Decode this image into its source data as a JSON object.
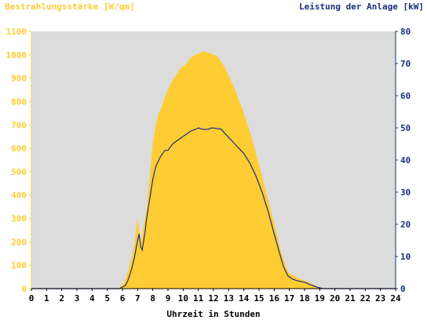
{
  "chart_data": {
    "type": "area",
    "title_left": "Bestrahlungsstärke [W/qm]",
    "title_right": "Leistung der Anlage [kW]",
    "xlabel": "Uhrzeit in Stunden",
    "xlim": [
      0,
      24
    ],
    "x_ticks": [
      "0",
      "1",
      "2",
      "3",
      "4",
      "5",
      "6",
      "7",
      "8",
      "9",
      "10",
      "11",
      "12",
      "13",
      "14",
      "15",
      "16",
      "17",
      "18",
      "19",
      "20",
      "21",
      "22",
      "23",
      "24"
    ],
    "ylim_left": [
      0,
      1100
    ],
    "y_ticks_left": [
      "0",
      "100",
      "200",
      "300",
      "400",
      "500",
      "600",
      "700",
      "800",
      "900",
      "1000",
      "1100"
    ],
    "ylim_right": [
      0,
      80
    ],
    "y_ticks_right": [
      "0",
      "10",
      "20",
      "30",
      "40",
      "50",
      "60",
      "70",
      "80"
    ],
    "grid": false,
    "colors": {
      "plot_bg": "#dcdcdc",
      "irradiance_fill": "#ffcc33",
      "power_line": "#1a2f7a",
      "left_axis": "#ffcc33",
      "right_axis": "#1a2f7a"
    },
    "series": [
      {
        "axis": "left",
        "style": "area",
        "x": [
          0,
          5.6,
          5.8,
          6.0,
          6.2,
          6.4,
          6.6,
          6.8,
          6.9,
          7.0,
          7.1,
          7.2,
          7.3,
          7.4,
          7.5,
          7.6,
          7.8,
          8.0,
          8.2,
          8.4,
          8.6,
          8.8,
          9.0,
          9.2,
          9.4,
          9.6,
          9.8,
          10.0,
          10.2,
          10.4,
          10.6,
          10.8,
          11.0,
          11.2,
          11.4,
          11.6,
          11.8,
          12.0,
          12.2,
          12.4,
          12.6,
          12.8,
          13.0,
          13.3,
          13.6,
          14.0,
          14.4,
          14.8,
          15.2,
          15.6,
          16.0,
          16.4,
          16.8,
          17.0,
          17.3,
          17.6,
          18.0,
          18.3,
          18.6,
          18.8,
          19.0,
          19.2,
          24
        ],
        "y": [
          0,
          0,
          5,
          15,
          40,
          80,
          130,
          190,
          260,
          300,
          250,
          200,
          230,
          270,
          300,
          340,
          480,
          620,
          700,
          750,
          780,
          820,
          850,
          880,
          900,
          920,
          940,
          950,
          960,
          980,
          990,
          1000,
          1005,
          1010,
          1015,
          1010,
          1005,
          1000,
          995,
          980,
          960,
          940,
          910,
          870,
          820,
          750,
          670,
          580,
          480,
          380,
          280,
          170,
          90,
          65,
          55,
          45,
          35,
          28,
          18,
          8,
          3,
          0,
          0
        ]
      },
      {
        "axis": "right",
        "style": "line",
        "x": [
          0,
          5.8,
          6.0,
          6.2,
          6.4,
          6.6,
          6.8,
          7.0,
          7.1,
          7.2,
          7.3,
          7.4,
          7.5,
          7.6,
          7.8,
          8.0,
          8.2,
          8.5,
          8.8,
          9.0,
          9.3,
          9.6,
          9.9,
          10.2,
          10.5,
          10.8,
          11.0,
          11.3,
          11.6,
          11.9,
          12.2,
          12.5,
          12.8,
          13.1,
          13.4,
          13.7,
          14.0,
          14.4,
          14.8,
          15.2,
          15.6,
          16.0,
          16.3,
          16.6,
          16.9,
          17.2,
          17.5,
          18.0,
          18.4,
          18.8,
          19.2,
          24
        ],
        "y": [
          0,
          0,
          0.5,
          1,
          3,
          6,
          10,
          15,
          17,
          13,
          12,
          15,
          18,
          22,
          28,
          34,
          38,
          41,
          43,
          43,
          45,
          46,
          47,
          48,
          49,
          49.5,
          50,
          49.5,
          49.5,
          50,
          49.8,
          49.6,
          48,
          46.5,
          45,
          43.5,
          42,
          39,
          35,
          30,
          24,
          17,
          12,
          7,
          4,
          3,
          2.5,
          2,
          1.2,
          0.5,
          0,
          0
        ]
      }
    ]
  }
}
